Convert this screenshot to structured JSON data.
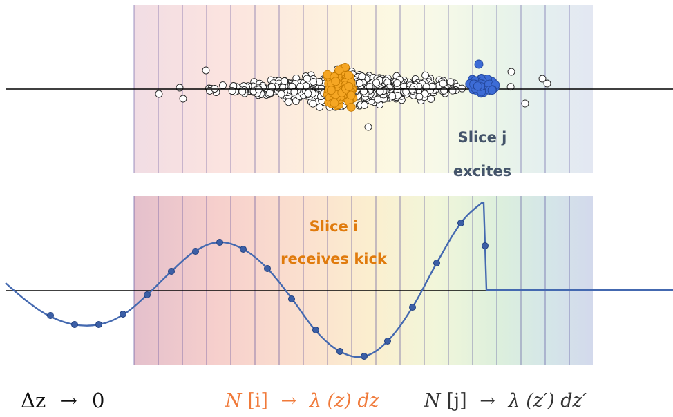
{
  "colors": {
    "slice_lines": "#4a3f94",
    "wake_curve": "#4469b0",
    "wake_points": "#3c5fa6",
    "slice_i_fill": "#f5a623",
    "slice_i_stroke": "#c57a00",
    "slice_j_fill": "#3d6cd6",
    "slice_j_stroke": "#24479a",
    "slice_i_text": "#e07b0d",
    "slice_j_text": "#44546a",
    "formula_i": "#f07a3a",
    "formula_j": "#333333",
    "axis": "#000000",
    "band_gradient": [
      "#e8c3cf",
      "#f6cfcc",
      "#fae0cc",
      "#fbefcf",
      "#f7f7dc",
      "#e6f3dc",
      "#d8ecdf",
      "#d5e4ea",
      "#d7dbec"
    ]
  },
  "labels": {
    "slice_j_line1": "Slice j",
    "slice_j_line2": "excites",
    "slice_i_line1": "Slice i",
    "slice_i_line2": "receives kick"
  },
  "formulas": {
    "delta_z": {
      "lhs": "Δz",
      "arrow": "→",
      "rhs": "0"
    },
    "slice_i": {
      "lhs_var": "N",
      "lhs_idx": "[i]",
      "arrow": "→",
      "rhs_fn": "λ",
      "rhs_arg": "(z)",
      "rhs_d": "dz"
    },
    "slice_j": {
      "lhs_var": "N",
      "lhs_idx": "[j]",
      "arrow": "→",
      "rhs_fn": "λ",
      "rhs_arg": "(z′)",
      "rhs_d": "dz′"
    }
  },
  "icons": {
    "particle": "hollow-circle-marker",
    "slice_i_particle": "filled-orange-circle-marker",
    "slice_j_particle": "filled-blue-circle-marker",
    "wake_point": "filled-blue-dot-marker"
  }
}
